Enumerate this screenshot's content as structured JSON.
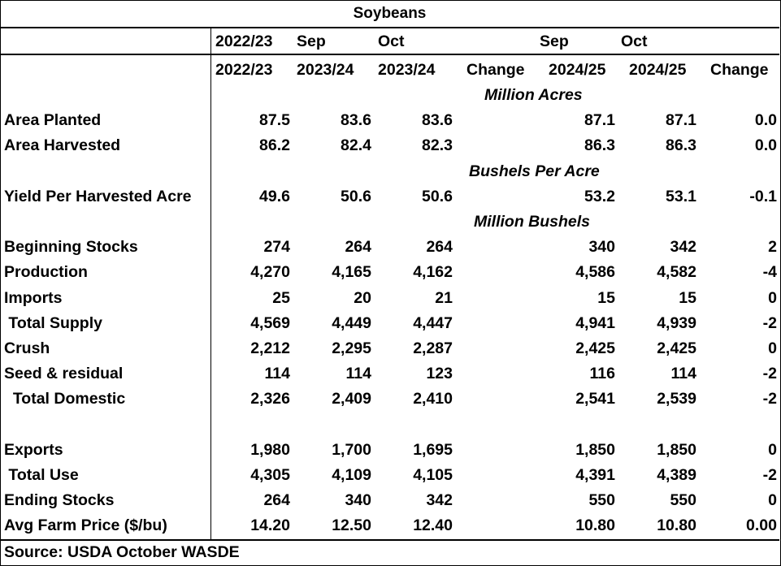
{
  "title": "Soybeans",
  "header1": [
    "2022/23",
    "Sep",
    "Oct",
    "Sep",
    "Oct"
  ],
  "header2": [
    "2022/23",
    "2023/24",
    "2023/24",
    "Change",
    "2024/25",
    "2024/25",
    "Change"
  ],
  "units": {
    "acres": "Million Acres",
    "bushels_per_acre": "Bushels Per Acre",
    "bushels": "Million Bushels"
  },
  "rows": [
    {
      "label": "Area Planted",
      "values": [
        "87.5",
        "83.6",
        "83.6",
        "",
        "87.1",
        "87.1",
        "0.0"
      ]
    },
    {
      "label": "Area Harvested",
      "values": [
        "86.2",
        "82.4",
        "82.3",
        "",
        "86.3",
        "86.3",
        "0.0"
      ]
    },
    {
      "label": "Yield Per Harvested Acre",
      "values": [
        "49.6",
        "50.6",
        "50.6",
        "",
        "53.2",
        "53.1",
        "-0.1"
      ]
    },
    {
      "label": "Beginning Stocks",
      "values": [
        "274",
        "264",
        "264",
        "",
        "340",
        "342",
        "2"
      ]
    },
    {
      "label": "Production",
      "values": [
        "4,270",
        "4,165",
        "4,162",
        "",
        "4,586",
        "4,582",
        "-4"
      ]
    },
    {
      "label": "Imports",
      "values": [
        "25",
        "20",
        "21",
        "",
        "15",
        "15",
        "0"
      ]
    },
    {
      "label": " Total Supply",
      "values": [
        "4,569",
        "4,449",
        "4,447",
        "",
        "4,941",
        "4,939",
        "-2"
      ]
    },
    {
      "label": "Crush",
      "values": [
        "2,212",
        "2,295",
        "2,287",
        "",
        "2,425",
        "2,425",
        "0"
      ]
    },
    {
      "label": "Seed & residual",
      "values": [
        "114",
        "114",
        "123",
        "",
        "116",
        "114",
        "-2"
      ]
    },
    {
      "label": "  Total Domestic",
      "values": [
        "2,326",
        "2,409",
        "2,410",
        "",
        "2,541",
        "2,539",
        "-2"
      ]
    },
    {
      "label": "Exports",
      "values": [
        "1,980",
        "1,700",
        "1,695",
        "",
        "1,850",
        "1,850",
        "0"
      ]
    },
    {
      "label": " Total Use",
      "values": [
        "4,305",
        "4,109",
        "4,105",
        "",
        "4,391",
        "4,389",
        "-2"
      ]
    },
    {
      "label": "Ending Stocks",
      "values": [
        "264",
        "340",
        "342",
        "",
        "550",
        "550",
        "0"
      ]
    },
    {
      "label": "Avg Farm Price ($/bu)",
      "values": [
        "14.20",
        "12.50",
        "12.40",
        "",
        "10.80",
        "10.80",
        "0.00"
      ]
    }
  ],
  "source": "Source: USDA October WASDE"
}
